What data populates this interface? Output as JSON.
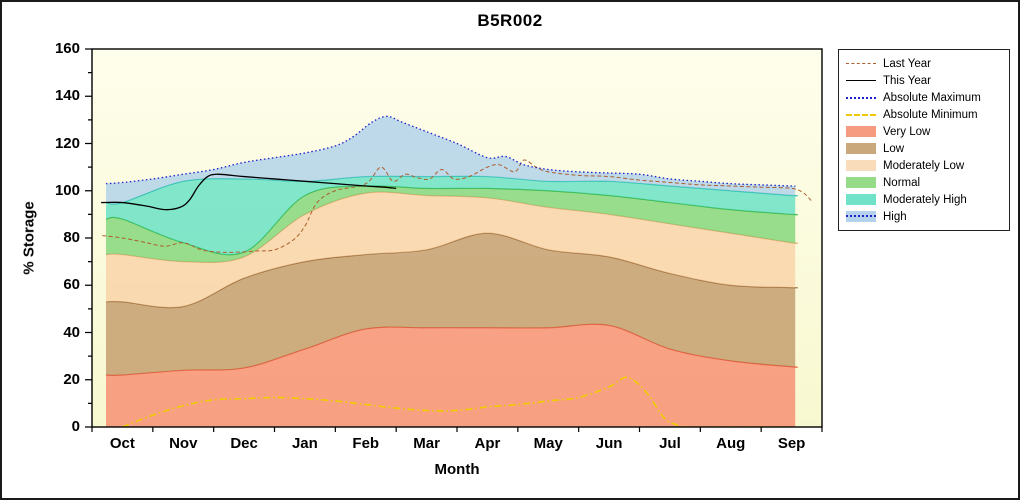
{
  "title": "B5R002",
  "colors": {
    "figure_bg": "#ffffff",
    "plot_bg_top": "#FEFEEC",
    "plot_bg_bottom": "#F8F8D0",
    "axis": "#000000",
    "legend_border": "#222222"
  },
  "chart_data": {
    "type": "area",
    "title": "B5R002",
    "xlabel": "Month",
    "ylabel": "% Storage",
    "x_ticklabels": [
      "Oct",
      "Nov",
      "Dec",
      "Jan",
      "Feb",
      "Mar",
      "Apr",
      "May",
      "Jun",
      "Jul",
      "Aug",
      "Sep"
    ],
    "y_ticks": [
      0,
      20,
      40,
      60,
      80,
      100,
      120,
      140,
      160
    ],
    "ylim": [
      0,
      160
    ],
    "grid": false,
    "legend_position": "right",
    "bands_t": [
      -0.27,
      0,
      1,
      2,
      3,
      4,
      5,
      6,
      7,
      8,
      9,
      10,
      11,
      11.06
    ],
    "bands": [
      {
        "name": "Very Low",
        "fill": "rgba(247,106,80,0.62)",
        "edge": "rgba(238,92,66,0.95)",
        "upper": [
          22,
          22,
          24,
          25,
          33,
          41.5,
          42,
          42,
          42,
          43,
          33,
          28,
          25.5,
          25.5
        ]
      },
      {
        "name": "Low",
        "fill": "rgba(172,118,62,0.58)",
        "edge": "rgba(146,96,44,0.85)",
        "upper": [
          53,
          53,
          51,
          63,
          70,
          73,
          75,
          82,
          75,
          72,
          65,
          60,
          59,
          59
        ]
      },
      {
        "name": "Moderately Low",
        "fill": "rgba(248,196,148,0.60)",
        "edge": "rgba(236,172,120,0.95)",
        "upper": [
          73,
          73,
          70,
          72,
          90,
          99,
          98,
          97,
          93,
          90,
          86,
          82,
          78,
          78
        ]
      },
      {
        "name": "Normal",
        "fill": "rgba(88,202,88,0.62)",
        "edge": "rgba(56,176,56,0.9)",
        "upper": [
          88,
          88,
          78,
          74,
          98,
          102,
          101,
          101,
          100,
          98,
          95,
          92,
          90,
          90
        ]
      },
      {
        "name": "Moderately High",
        "fill": "rgba(54,216,188,0.62)",
        "edge": "rgba(28,192,166,0.9)",
        "upper": [
          95,
          95,
          104,
          105,
          104,
          106,
          106,
          106,
          104,
          104,
          102,
          100,
          98,
          98
        ]
      },
      {
        "name": "High",
        "fill": "rgba(148,194,235,0.60)",
        "edge": null,
        "upper_from_line": "Absolute Maximum"
      }
    ],
    "lines": [
      {
        "name": "Last Year",
        "color": "#AE5F2E",
        "width": 1,
        "dash": [
          4,
          2.5
        ],
        "t": [
          -0.33,
          0,
          0.4,
          0.7,
          1.0,
          1.3,
          1.6,
          1.9,
          2.2,
          2.5,
          2.8,
          3.0,
          3.2,
          3.5,
          4.0,
          4.25,
          4.45,
          4.65,
          4.85,
          5.05,
          5.25,
          5.45,
          5.7,
          6.0,
          6.2,
          6.45,
          6.6,
          6.8,
          7.0,
          7.5,
          8,
          8.5,
          9,
          9.5,
          10,
          10.5,
          11,
          11.2,
          11.35
        ],
        "v": [
          81,
          80,
          78,
          76.5,
          78,
          75,
          74,
          74,
          74.5,
          75,
          79,
          85,
          95,
          100,
          103,
          110,
          104,
          107,
          105.5,
          105,
          109,
          105,
          106,
          110,
          111,
          108,
          113,
          110,
          108,
          106.5,
          106,
          104.5,
          103.5,
          102.5,
          102,
          101.5,
          101,
          99,
          95
        ]
      },
      {
        "name": "This Year",
        "color": "#000000",
        "width": 1.3,
        "dash": [],
        "t": [
          -0.35,
          0,
          0.4,
          0.7,
          0.95,
          1.1,
          1.25,
          1.4,
          1.55,
          1.8,
          2,
          2.5,
          3,
          3.5,
          4,
          4.3,
          4.5
        ],
        "v": [
          95,
          95,
          93.5,
          92,
          93,
          96,
          102,
          106,
          107,
          106.5,
          106,
          105,
          104,
          103,
          102,
          101.5,
          101
        ]
      },
      {
        "name": "Absolute Maximum",
        "color": "#1F1FCB",
        "width": 1.3,
        "dash": [
          1.5,
          2.5
        ],
        "t": [
          -0.27,
          0,
          0.5,
          1,
          1.5,
          2,
          2.5,
          3,
          3.5,
          3.8,
          4.1,
          4.35,
          4.6,
          5,
          5.5,
          6,
          6.3,
          6.6,
          7,
          7.5,
          8,
          8.5,
          9,
          9.5,
          10,
          10.5,
          11,
          11.06
        ],
        "v": [
          103,
          103.5,
          105,
          107,
          109,
          112,
          114,
          116,
          119,
          123,
          129,
          131.5,
          129,
          125,
          120,
          114,
          114.5,
          111,
          109,
          108,
          107.5,
          107,
          105,
          104,
          103,
          102.5,
          102,
          102
        ]
      },
      {
        "name": "Absolute Minimum",
        "color": "#F0CC00",
        "width": 1.6,
        "dash": [
          7,
          3,
          1.5,
          3
        ],
        "t": [
          0,
          0.5,
          1,
          1.5,
          2,
          2.5,
          3,
          3.5,
          4,
          4.5,
          5,
          5.5,
          6,
          6.5,
          7,
          7.5,
          8,
          8.3,
          8.6,
          8.9,
          9.1,
          9.3,
          10,
          11
        ],
        "v": [
          0,
          5,
          9,
          11.5,
          12,
          12.5,
          12,
          11,
          9.5,
          8,
          7,
          7,
          8.5,
          9.5,
          11,
          12.5,
          17,
          21,
          15,
          4,
          1,
          0,
          0,
          0
        ]
      }
    ],
    "legend": [
      {
        "label": "Last Year",
        "kind": "line",
        "color": "#AE5F2E",
        "css": "dashed",
        "lw": 1
      },
      {
        "label": "This Year",
        "kind": "line",
        "color": "#000000",
        "css": "solid",
        "lw": 1
      },
      {
        "label": "Absolute Maximum",
        "kind": "line",
        "color": "#1F1FCB",
        "css": "dotted",
        "lw": 2
      },
      {
        "label": "Absolute Minimum",
        "kind": "line",
        "color": "#F0C800",
        "css": "dashed",
        "lw": 2
      },
      {
        "label": "Very Low",
        "kind": "patch",
        "color": "#F79B80"
      },
      {
        "label": "Low",
        "kind": "patch",
        "color": "#C9A87C"
      },
      {
        "label": "Moderately Low",
        "kind": "patch",
        "color": "#F9DCBA"
      },
      {
        "label": "Normal",
        "kind": "patch",
        "color": "#96DC88"
      },
      {
        "label": "Moderately High",
        "kind": "patch",
        "color": "#6FE2C8"
      },
      {
        "label": "High",
        "kind": "patch-line",
        "color": "#B4D2EC",
        "line_color": "#1F1FCB"
      }
    ]
  }
}
